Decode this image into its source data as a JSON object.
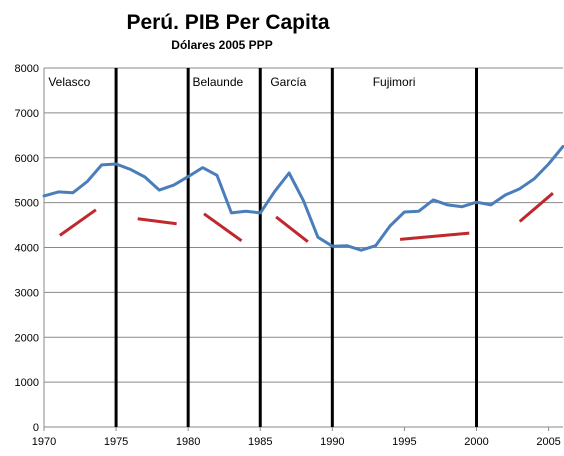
{
  "chart_data": {
    "type": "line",
    "title": "Perú. PIB Per Capita",
    "subtitle": "Dólares 2005 PPP",
    "xlabel": "",
    "ylabel": "",
    "xlim": [
      1970,
      2006
    ],
    "ylim": [
      0,
      8000
    ],
    "x_ticks": [
      1970,
      1975,
      1980,
      1985,
      1990,
      1995,
      2000,
      2005
    ],
    "y_ticks": [
      0,
      1000,
      2000,
      3000,
      4000,
      5000,
      6000,
      7000,
      8000
    ],
    "grid": true,
    "series": [
      {
        "color": "#4a7ebb",
        "points": [
          [
            1970,
            5150
          ],
          [
            1971,
            5240
          ],
          [
            1972,
            5220
          ],
          [
            1973,
            5470
          ],
          [
            1974,
            5840
          ],
          [
            1975,
            5860
          ],
          [
            1976,
            5740
          ],
          [
            1977,
            5570
          ],
          [
            1978,
            5280
          ],
          [
            1979,
            5390
          ],
          [
            1980,
            5580
          ],
          [
            1981,
            5780
          ],
          [
            1982,
            5610
          ],
          [
            1983,
            4770
          ],
          [
            1984,
            4810
          ],
          [
            1985,
            4770
          ],
          [
            1986,
            5250
          ],
          [
            1987,
            5660
          ],
          [
            1988,
            5040
          ],
          [
            1989,
            4230
          ],
          [
            1990,
            4030
          ],
          [
            1991,
            4040
          ],
          [
            1992,
            3940
          ],
          [
            1993,
            4040
          ],
          [
            1994,
            4480
          ],
          [
            1995,
            4790
          ],
          [
            1996,
            4810
          ],
          [
            1997,
            5060
          ],
          [
            1998,
            4950
          ],
          [
            1999,
            4910
          ],
          [
            2000,
            5010
          ],
          [
            2001,
            4950
          ],
          [
            2002,
            5170
          ],
          [
            2003,
            5310
          ],
          [
            2004,
            5530
          ],
          [
            2005,
            5860
          ],
          [
            2006,
            6250
          ]
        ]
      }
    ],
    "trend_lines": [
      {
        "color": "#c0282d",
        "x1": 1971.1,
        "y1": 4270,
        "x2": 1973.6,
        "y2": 4840
      },
      {
        "color": "#c0282d",
        "x1": 1976.5,
        "y1": 4640,
        "x2": 1979.2,
        "y2": 4530
      },
      {
        "color": "#c0282d",
        "x1": 1981.1,
        "y1": 4750,
        "x2": 1983.7,
        "y2": 4150
      },
      {
        "color": "#c0282d",
        "x1": 1986.1,
        "y1": 4680,
        "x2": 1988.3,
        "y2": 4130
      },
      {
        "color": "#c0282d",
        "x1": 1994.7,
        "y1": 4180,
        "x2": 1999.5,
        "y2": 4320
      },
      {
        "color": "#c0282d",
        "x1": 2003.0,
        "y1": 4580,
        "x2": 2005.3,
        "y2": 5210
      }
    ],
    "dividers": [
      1975,
      1980,
      1985,
      1990,
      2000
    ],
    "eras": [
      {
        "label": "Velasco",
        "x": 1970.3
      },
      {
        "label": "Belaunde",
        "x": 1980.3
      },
      {
        "label": "García",
        "x": 1985.7
      },
      {
        "label": "Fujimori",
        "x": 1992.8
      }
    ]
  }
}
